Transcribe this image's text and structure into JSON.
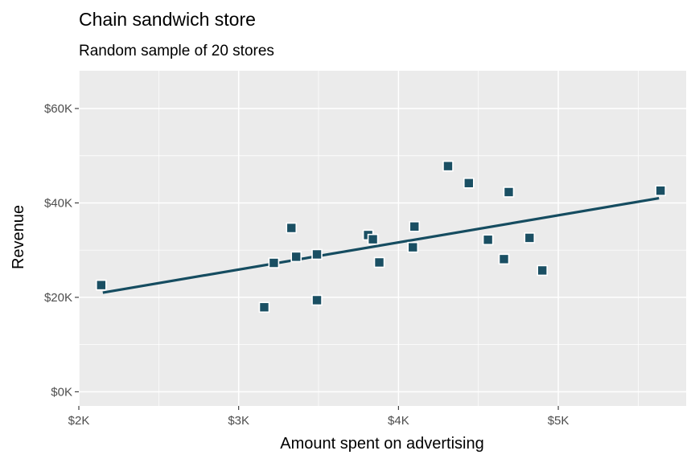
{
  "chart_data": {
    "type": "scatter",
    "title": "Chain sandwich store",
    "subtitle": "Random sample of 20 stores",
    "xlabel": "Amount spent on advertising",
    "ylabel": "Revenue",
    "xlim": [
      2000,
      5800
    ],
    "ylim": [
      -3000,
      68000
    ],
    "x_ticks": [
      {
        "value": 2000,
        "label": "$2K"
      },
      {
        "value": 3000,
        "label": "$3K"
      },
      {
        "value": 4000,
        "label": "$4K"
      },
      {
        "value": 5000,
        "label": "$5K"
      }
    ],
    "y_ticks": [
      {
        "value": 0,
        "label": "$0K"
      },
      {
        "value": 20000,
        "label": "$20K"
      },
      {
        "value": 40000,
        "label": "$40K"
      },
      {
        "value": 60000,
        "label": "$60K"
      }
    ],
    "grid": true,
    "marker_color": "#1a4f63",
    "line_color": "#154c60",
    "panel_color": "#ebebeb",
    "points": [
      {
        "x": 2140,
        "y": 22600
      },
      {
        "x": 3160,
        "y": 17900
      },
      {
        "x": 3220,
        "y": 27300
      },
      {
        "x": 3330,
        "y": 34700
      },
      {
        "x": 3360,
        "y": 28600
      },
      {
        "x": 3490,
        "y": 19400
      },
      {
        "x": 3490,
        "y": 29100
      },
      {
        "x": 3810,
        "y": 33200
      },
      {
        "x": 3840,
        "y": 32300
      },
      {
        "x": 3880,
        "y": 27400
      },
      {
        "x": 4090,
        "y": 30600
      },
      {
        "x": 4100,
        "y": 35000
      },
      {
        "x": 4310,
        "y": 47800
      },
      {
        "x": 4440,
        "y": 44200
      },
      {
        "x": 4560,
        "y": 32200
      },
      {
        "x": 4660,
        "y": 28100
      },
      {
        "x": 4690,
        "y": 42300
      },
      {
        "x": 4820,
        "y": 32600
      },
      {
        "x": 4900,
        "y": 25700
      },
      {
        "x": 5640,
        "y": 42600
      }
    ],
    "trend_line": [
      {
        "x": 2150,
        "y": 21000
      },
      {
        "x": 5630,
        "y": 41000
      }
    ]
  }
}
